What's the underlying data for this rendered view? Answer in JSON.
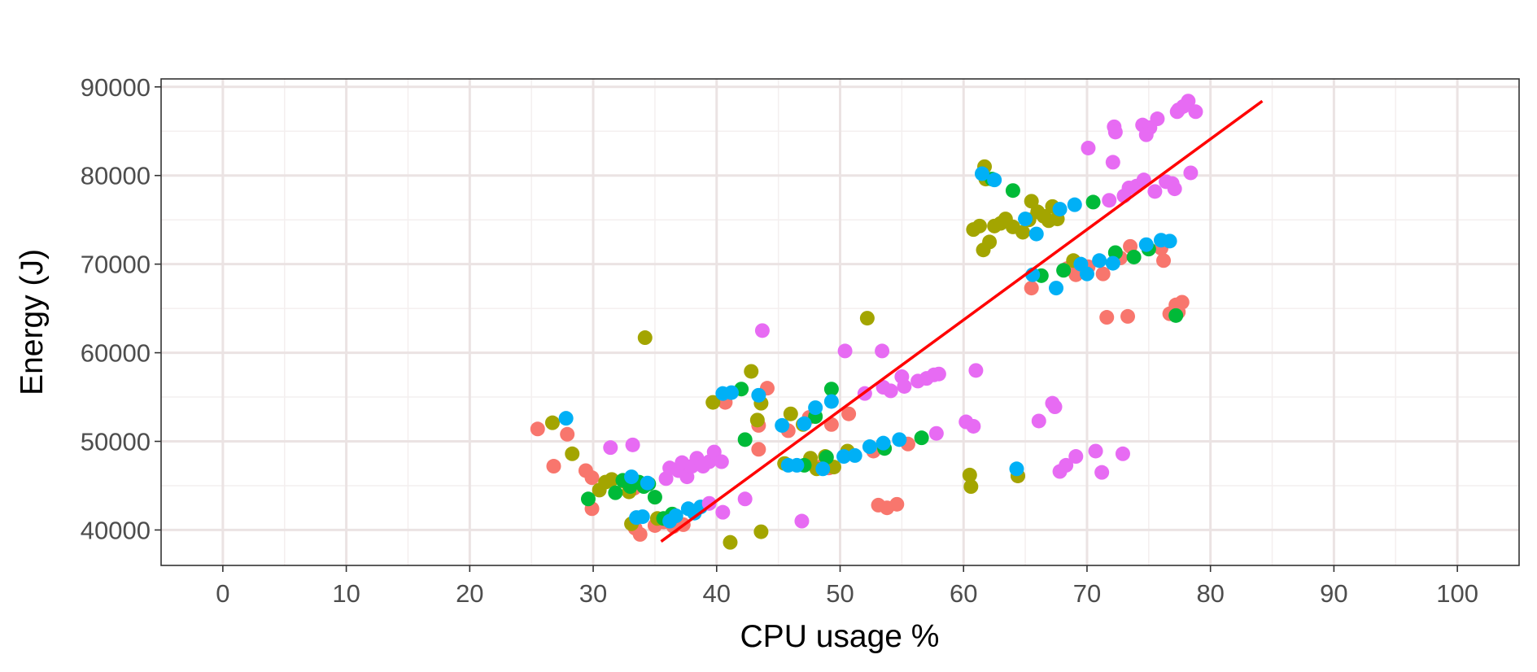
{
  "chart_data": {
    "type": "scatter",
    "title": "",
    "xlabel": "CPU usage %",
    "ylabel": "Energy (J)",
    "xlim": [
      -5,
      105
    ],
    "ylim": [
      36000,
      90900
    ],
    "xticks": [
      0,
      10,
      20,
      30,
      40,
      50,
      60,
      70,
      80,
      90,
      100
    ],
    "yticks": [
      40000,
      50000,
      60000,
      70000,
      80000,
      90000
    ],
    "xtick_labels": [
      "0",
      "10",
      "20",
      "30",
      "40",
      "50",
      "60",
      "70",
      "80",
      "90",
      "100"
    ],
    "ytick_labels": [
      "40000",
      "50000",
      "60000",
      "70000",
      "80000",
      "90000"
    ],
    "grid": true,
    "legend": "none",
    "colors": {
      "panel_border": "#333333",
      "grid_major": "#ebe3e3",
      "grid_minor": "#f4efef",
      "fit_line": "#ff0000"
    },
    "fit_line": {
      "x": [
        35.5,
        84.2
      ],
      "y": [
        38700,
        88400
      ]
    },
    "series": [
      {
        "color": "#f8766d",
        "points": [
          [
            25.5,
            51400
          ],
          [
            26.8,
            47200
          ],
          [
            27.9,
            50800
          ],
          [
            29.4,
            46700
          ],
          [
            29.9,
            45900
          ],
          [
            29.9,
            42400
          ],
          [
            33.3,
            44700
          ],
          [
            33.4,
            40200
          ],
          [
            33.8,
            39500
          ],
          [
            35.0,
            40500
          ],
          [
            35.7,
            40900
          ],
          [
            36.5,
            40400
          ],
          [
            37.3,
            40600
          ],
          [
            40.7,
            54400
          ],
          [
            43.4,
            51800
          ],
          [
            43.4,
            49100
          ],
          [
            44.1,
            56000
          ],
          [
            45.8,
            51200
          ],
          [
            47.5,
            52700
          ],
          [
            48.5,
            47200
          ],
          [
            49.1,
            47000
          ],
          [
            49.3,
            51900
          ],
          [
            50.7,
            53100
          ],
          [
            52.7,
            48900
          ],
          [
            53.1,
            42800
          ],
          [
            53.8,
            42500
          ],
          [
            54.6,
            42900
          ],
          [
            55.5,
            49700
          ],
          [
            64.4,
            46100
          ],
          [
            65.5,
            67300
          ],
          [
            68.4,
            69500
          ],
          [
            69.1,
            68800
          ],
          [
            70.1,
            69700
          ],
          [
            71.3,
            68900
          ],
          [
            71.6,
            64000
          ],
          [
            72.7,
            70700
          ],
          [
            73.3,
            64100
          ],
          [
            73.5,
            72000
          ],
          [
            76.0,
            71800
          ],
          [
            76.2,
            70400
          ],
          [
            76.7,
            64400
          ],
          [
            77.2,
            65400
          ],
          [
            77.4,
            64600
          ],
          [
            77.7,
            65700
          ]
        ]
      },
      {
        "color": "#a3a500",
        "points": [
          [
            26.7,
            52100
          ],
          [
            28.3,
            48600
          ],
          [
            30.5,
            44500
          ],
          [
            31.0,
            45400
          ],
          [
            31.5,
            45700
          ],
          [
            32.5,
            45500
          ],
          [
            32.9,
            44300
          ],
          [
            33.1,
            40700
          ],
          [
            34.2,
            61700
          ],
          [
            35.2,
            41300
          ],
          [
            39.7,
            54400
          ],
          [
            41.1,
            38600
          ],
          [
            42.8,
            57900
          ],
          [
            43.3,
            52400
          ],
          [
            43.6,
            54300
          ],
          [
            43.6,
            39800
          ],
          [
            45.5,
            47500
          ],
          [
            46.0,
            53100
          ],
          [
            47.0,
            51900
          ],
          [
            47.6,
            48100
          ],
          [
            48.1,
            46900
          ],
          [
            48.8,
            48300
          ],
          [
            49.5,
            47100
          ],
          [
            50.6,
            48900
          ],
          [
            52.2,
            63900
          ],
          [
            60.5,
            46200
          ],
          [
            60.6,
            44900
          ],
          [
            60.8,
            73900
          ],
          [
            61.3,
            74300
          ],
          [
            61.6,
            71600
          ],
          [
            61.7,
            81000
          ],
          [
            61.8,
            79600
          ],
          [
            62.1,
            72500
          ],
          [
            62.5,
            74300
          ],
          [
            63.0,
            74600
          ],
          [
            63.4,
            75100
          ],
          [
            64.0,
            74200
          ],
          [
            64.4,
            46100
          ],
          [
            64.8,
            73600
          ],
          [
            65.3,
            75000
          ],
          [
            65.5,
            77100
          ],
          [
            66.0,
            75900
          ],
          [
            66.5,
            75400
          ],
          [
            66.9,
            74900
          ],
          [
            67.2,
            76500
          ],
          [
            67.6,
            75100
          ],
          [
            68.9,
            70400
          ]
        ]
      },
      {
        "color": "#00ba38",
        "points": [
          [
            29.6,
            43500
          ],
          [
            31.8,
            44200
          ],
          [
            32.4,
            45600
          ],
          [
            33.0,
            44900
          ],
          [
            33.7,
            45400
          ],
          [
            34.1,
            44900
          ],
          [
            34.5,
            45200
          ],
          [
            35.0,
            43700
          ],
          [
            35.7,
            41300
          ],
          [
            36.4,
            41800
          ],
          [
            42.0,
            55900
          ],
          [
            42.3,
            50200
          ],
          [
            47.1,
            47300
          ],
          [
            48.0,
            52800
          ],
          [
            48.9,
            48200
          ],
          [
            49.3,
            55900
          ],
          [
            53.6,
            49200
          ],
          [
            56.6,
            50400
          ],
          [
            62.3,
            79600
          ],
          [
            64.0,
            78300
          ],
          [
            66.3,
            68700
          ],
          [
            68.1,
            69300
          ],
          [
            70.5,
            77000
          ],
          [
            72.3,
            71300
          ],
          [
            73.8,
            70800
          ],
          [
            75.0,
            71700
          ],
          [
            77.2,
            64200
          ]
        ]
      },
      {
        "color": "#00b0f6",
        "points": [
          [
            27.8,
            52600
          ],
          [
            33.1,
            46000
          ],
          [
            33.5,
            41400
          ],
          [
            34.0,
            41500
          ],
          [
            34.4,
            45300
          ],
          [
            36.2,
            41000
          ],
          [
            36.7,
            41600
          ],
          [
            37.7,
            42400
          ],
          [
            38.2,
            41900
          ],
          [
            38.7,
            42600
          ],
          [
            40.5,
            55400
          ],
          [
            41.2,
            55500
          ],
          [
            43.4,
            55200
          ],
          [
            45.3,
            51800
          ],
          [
            45.8,
            47300
          ],
          [
            46.5,
            47300
          ],
          [
            47.1,
            52000
          ],
          [
            48.0,
            53800
          ],
          [
            48.6,
            46900
          ],
          [
            49.3,
            54500
          ],
          [
            50.3,
            48300
          ],
          [
            51.2,
            48400
          ],
          [
            52.4,
            49400
          ],
          [
            53.5,
            49800
          ],
          [
            54.8,
            50200
          ],
          [
            64.3,
            46900
          ],
          [
            65.0,
            75100
          ],
          [
            65.6,
            68800
          ],
          [
            65.9,
            73400
          ],
          [
            67.5,
            67300
          ],
          [
            67.8,
            76200
          ],
          [
            69.0,
            76700
          ],
          [
            69.5,
            70000
          ],
          [
            70.0,
            68900
          ],
          [
            71.0,
            70400
          ],
          [
            72.1,
            70100
          ],
          [
            74.8,
            72200
          ],
          [
            76.0,
            72700
          ],
          [
            76.7,
            72600
          ],
          [
            61.5,
            80200
          ],
          [
            62.5,
            79500
          ]
        ]
      },
      {
        "color": "#e76bf3",
        "points": [
          [
            31.4,
            49300
          ],
          [
            33.2,
            49600
          ],
          [
            35.9,
            45800
          ],
          [
            36.2,
            47000
          ],
          [
            36.9,
            46700
          ],
          [
            37.2,
            47600
          ],
          [
            37.6,
            46000
          ],
          [
            38.0,
            47200
          ],
          [
            38.4,
            48100
          ],
          [
            38.9,
            47200
          ],
          [
            39.4,
            47700
          ],
          [
            39.8,
            48800
          ],
          [
            40.4,
            47700
          ],
          [
            40.5,
            42000
          ],
          [
            39.4,
            43000
          ],
          [
            42.3,
            43500
          ],
          [
            43.7,
            62500
          ],
          [
            46.9,
            41000
          ],
          [
            50.4,
            60200
          ],
          [
            52.0,
            55400
          ],
          [
            53.4,
            60200
          ],
          [
            53.5,
            56100
          ],
          [
            54.1,
            55700
          ],
          [
            55.0,
            57300
          ],
          [
            55.2,
            56200
          ],
          [
            56.3,
            56800
          ],
          [
            57.0,
            57100
          ],
          [
            57.6,
            57500
          ],
          [
            58.0,
            57600
          ],
          [
            57.8,
            50900
          ],
          [
            60.2,
            52200
          ],
          [
            60.8,
            51700
          ],
          [
            61.0,
            58000
          ],
          [
            66.1,
            52300
          ],
          [
            67.2,
            54300
          ],
          [
            67.4,
            53900
          ],
          [
            67.8,
            46600
          ],
          [
            68.3,
            47300
          ],
          [
            69.1,
            48300
          ],
          [
            70.1,
            83100
          ],
          [
            70.7,
            48900
          ],
          [
            71.2,
            46500
          ],
          [
            71.8,
            77200
          ],
          [
            72.1,
            81500
          ],
          [
            72.2,
            85500
          ],
          [
            72.3,
            84900
          ],
          [
            72.9,
            48600
          ],
          [
            73.4,
            78600
          ],
          [
            74.0,
            78800
          ],
          [
            74.5,
            85700
          ],
          [
            74.6,
            79500
          ],
          [
            75.1,
            85400
          ],
          [
            75.5,
            78200
          ],
          [
            75.7,
            86400
          ],
          [
            76.4,
            79300
          ],
          [
            76.9,
            79100
          ],
          [
            77.1,
            78500
          ],
          [
            77.3,
            87200
          ],
          [
            77.4,
            87400
          ],
          [
            77.8,
            87800
          ],
          [
            78.2,
            88400
          ],
          [
            78.4,
            80300
          ],
          [
            78.8,
            87200
          ],
          [
            74.8,
            84600
          ],
          [
            73.0,
            77700
          ]
        ]
      }
    ]
  }
}
